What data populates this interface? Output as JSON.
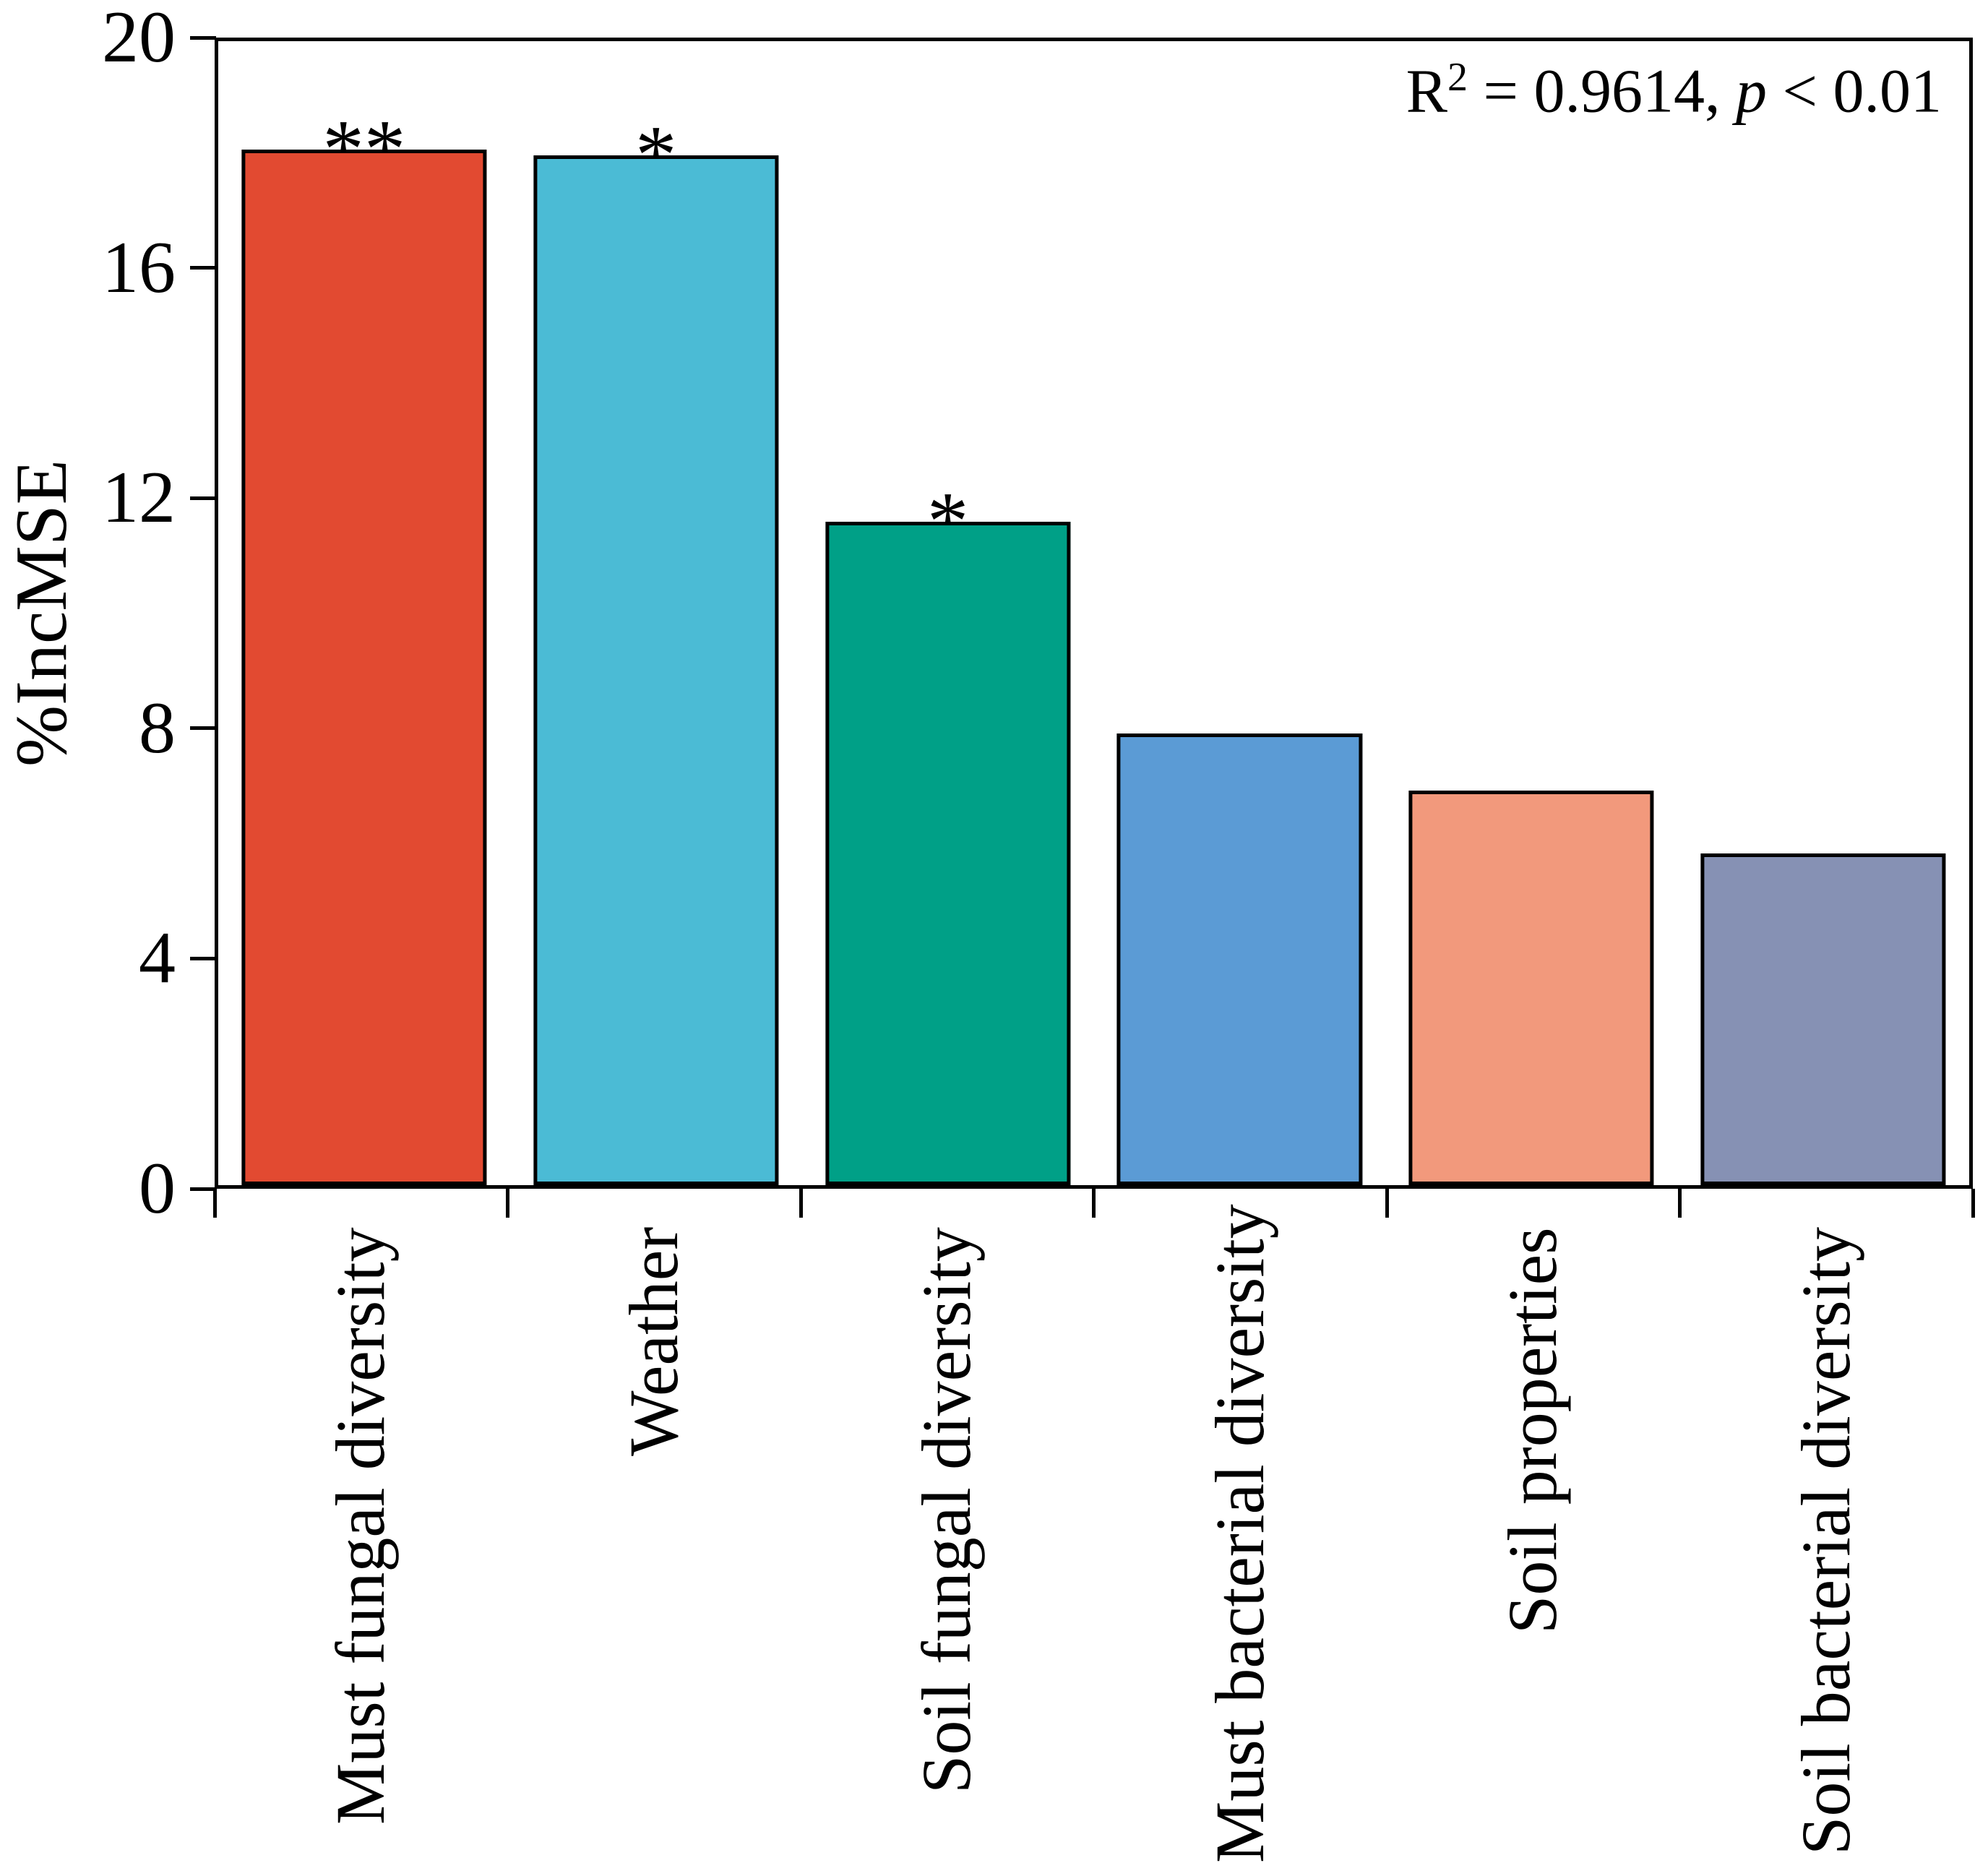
{
  "figure": {
    "background": "#ffffff",
    "frame_color": "#000000",
    "annotation": {
      "r": "R",
      "sup": "2",
      "middle": " = 0.9614, ",
      "p": "p",
      "tail": " < 0.01"
    }
  },
  "chart_data": {
    "type": "bar",
    "title": "",
    "xlabel": "",
    "ylabel": "%IncMSE",
    "ylim": [
      0,
      20
    ],
    "yticks": [
      0,
      4,
      8,
      12,
      16,
      20
    ],
    "grid": false,
    "legend": false,
    "annotation_text": "R² = 0.9614, p < 0.01",
    "categories": [
      "Must fungal diversity",
      "Weather",
      "Soil fungal diversity",
      "Must bacterial diversity",
      "Soil properties",
      "Soil bacterial diversity"
    ],
    "values": [
      18.1,
      18.0,
      11.6,
      7.9,
      6.9,
      5.8
    ],
    "significance": [
      "**",
      "*",
      "*",
      "",
      "",
      ""
    ],
    "bar_colors": [
      "#E24A31",
      "#4BBBD5",
      "#00A087",
      "#5B9BD5",
      "#F2997C",
      "#8691B4"
    ],
    "bar_border_color": "#000000"
  }
}
